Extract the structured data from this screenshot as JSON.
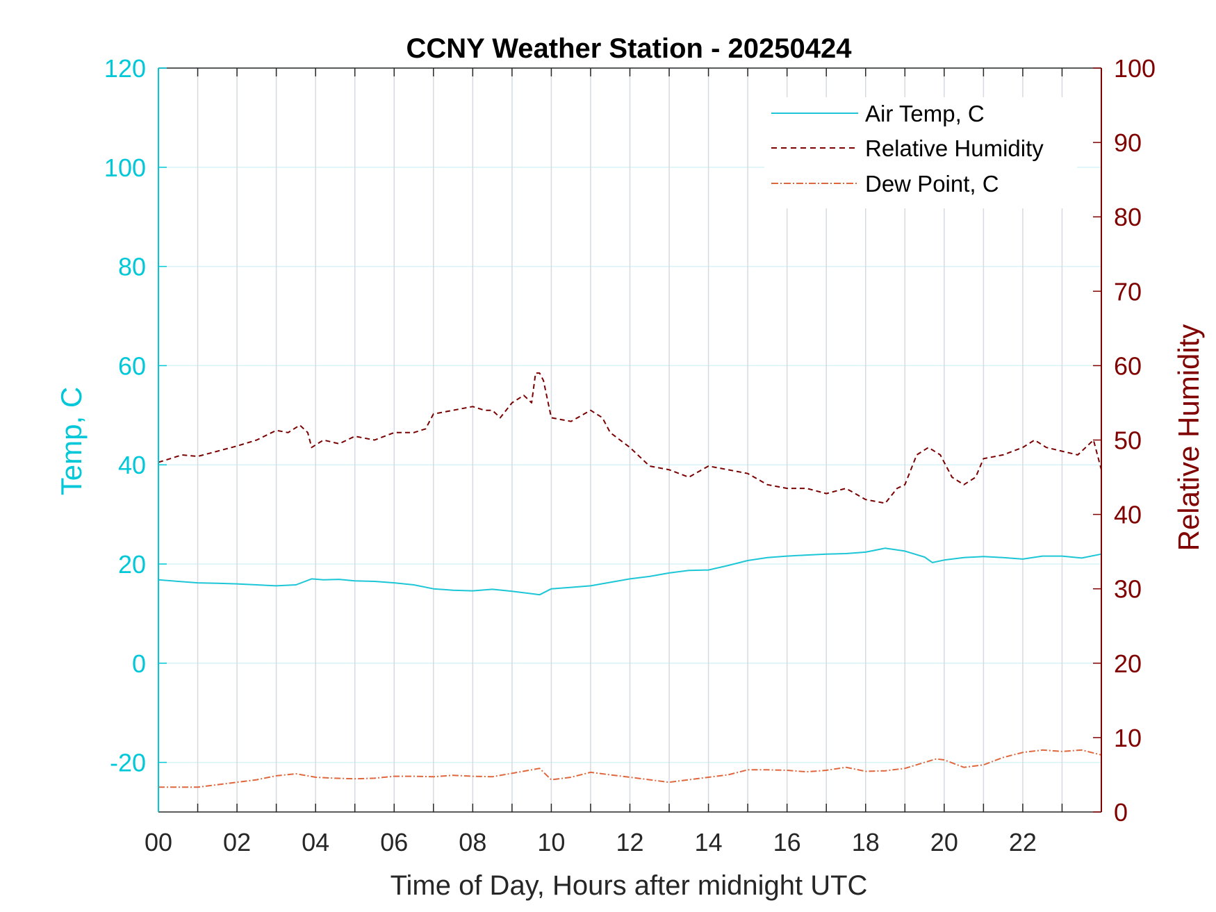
{
  "chart_data": {
    "type": "line",
    "title": "CCNY Weather Station - 20250424",
    "xlabel": "Time of Day, Hours after midnight UTC",
    "ylabel_left": "Temp, C",
    "ylabel_right": "Relative Humidity",
    "xlim": [
      0,
      24
    ],
    "ylim_left": [
      -30,
      120
    ],
    "ylim_right": [
      0,
      100
    ],
    "x_ticks": [
      0,
      2,
      4,
      6,
      8,
      10,
      12,
      14,
      16,
      18,
      20,
      22
    ],
    "x_tick_labels": [
      "00",
      "02",
      "04",
      "06",
      "08",
      "10",
      "12",
      "14",
      "16",
      "18",
      "20",
      "22"
    ],
    "y_left_ticks": [
      -20,
      0,
      20,
      40,
      60,
      80,
      100,
      120
    ],
    "y_left_tick_labels": [
      "-20",
      "0",
      "20",
      "40",
      "60",
      "80",
      "100",
      "120"
    ],
    "y_right_ticks": [
      0,
      10,
      20,
      30,
      40,
      50,
      60,
      70,
      80,
      90,
      100
    ],
    "y_right_tick_labels": [
      "0",
      "10",
      "20",
      "30",
      "40",
      "50",
      "60",
      "70",
      "80",
      "90",
      "100"
    ],
    "grid": true,
    "legend_position": "top-right",
    "colors": {
      "left_axis": "#00c8d8",
      "right_axis": "#800000",
      "air_temp": "#1cc6d6",
      "humidity": "#7a0000",
      "dew_point": "#e0663c",
      "grid_vertical": "#d5dbe0",
      "grid_horizontal": "#d8f3f7"
    },
    "series": [
      {
        "name": "Air Temp, C",
        "axis": "left",
        "style": "solid",
        "x": [
          0,
          0.5,
          1,
          1.5,
          2,
          2.5,
          3,
          3.5,
          3.9,
          4.2,
          4.6,
          5,
          5.5,
          6,
          6.5,
          7,
          7.5,
          8,
          8.5,
          9,
          9.5,
          9.7,
          10,
          10.5,
          11,
          11.5,
          12,
          12.5,
          13,
          13.5,
          14,
          14.5,
          15,
          15.5,
          16,
          16.5,
          17,
          17.5,
          18,
          18.5,
          19,
          19.5,
          19.7,
          20,
          20.5,
          21,
          21.5,
          22,
          22.5,
          23,
          23.5,
          24
        ],
        "y": [
          16.8,
          16.5,
          16.2,
          16.1,
          16.0,
          15.8,
          15.6,
          15.8,
          17.0,
          16.8,
          16.9,
          16.6,
          16.5,
          16.2,
          15.8,
          15.0,
          14.7,
          14.6,
          14.9,
          14.5,
          14.0,
          13.8,
          15.0,
          15.3,
          15.6,
          16.3,
          17.0,
          17.5,
          18.2,
          18.7,
          18.8,
          19.7,
          20.7,
          21.3,
          21.6,
          21.8,
          22.0,
          22.1,
          22.4,
          23.2,
          22.6,
          21.4,
          20.3,
          20.8,
          21.3,
          21.5,
          21.3,
          21.0,
          21.6,
          21.6,
          21.2,
          22.0
        ]
      },
      {
        "name": "Relative Humidity",
        "axis": "right",
        "style": "dashed",
        "x": [
          0,
          0.3,
          0.6,
          1,
          1.5,
          2,
          2.5,
          3,
          3.3,
          3.6,
          3.8,
          3.9,
          4.2,
          4.6,
          5,
          5.5,
          6,
          6.5,
          6.8,
          7,
          7.5,
          8,
          8.3,
          8.5,
          8.7,
          9,
          9.3,
          9.5,
          9.6,
          9.7,
          9.8,
          10,
          10.5,
          11,
          11.3,
          11.5,
          12,
          12.5,
          13,
          13.5,
          14,
          14.5,
          15,
          15.5,
          16,
          16.5,
          17,
          17.5,
          18,
          18.5,
          18.8,
          19,
          19.3,
          19.6,
          19.9,
          20.2,
          20.5,
          20.8,
          21,
          21.5,
          22,
          22.3,
          22.6,
          23,
          23.4,
          23.8,
          24
        ],
        "y": [
          47,
          47.5,
          48,
          47.8,
          48.5,
          49.2,
          50,
          51.3,
          51,
          52,
          51,
          49,
          50,
          49.5,
          50.5,
          50,
          51,
          51,
          51.5,
          53.5,
          54,
          54.5,
          54,
          54,
          53,
          55,
          56,
          55,
          59,
          59,
          58,
          53,
          52.5,
          54,
          53,
          51,
          49,
          46.5,
          46,
          45,
          46.5,
          46,
          45.5,
          44,
          43.5,
          43.5,
          42.8,
          43.5,
          42,
          41.5,
          43.5,
          44,
          48,
          49,
          48,
          45,
          44,
          45,
          47.5,
          48,
          49,
          50,
          49,
          48.5,
          48,
          50,
          46
        ]
      },
      {
        "name": "Dew Point, C",
        "axis": "left",
        "style": "dashdot",
        "x": [
          0,
          0.5,
          1,
          1.5,
          2,
          2.5,
          3,
          3.5,
          4,
          4.5,
          5,
          5.5,
          6,
          6.5,
          7,
          7.5,
          8,
          8.5,
          9,
          9.5,
          9.7,
          10,
          10.5,
          11,
          11.5,
          12,
          12.5,
          13,
          13.5,
          14,
          14.5,
          15,
          15.5,
          16,
          16.5,
          17,
          17.5,
          18,
          18.5,
          19,
          19.5,
          19.8,
          20,
          20.5,
          21,
          21.5,
          22,
          22.5,
          23,
          23.5,
          24
        ],
        "y": [
          -25,
          -25,
          -25,
          -24.5,
          -24,
          -23.5,
          -22.7,
          -22.3,
          -23,
          -23.2,
          -23.3,
          -23.2,
          -22.8,
          -22.8,
          -22.9,
          -22.6,
          -22.8,
          -22.9,
          -22.2,
          -21.5,
          -21.2,
          -23.5,
          -23,
          -22,
          -22.5,
          -23,
          -23.5,
          -24,
          -23.5,
          -23,
          -22.5,
          -21.5,
          -21.5,
          -21.6,
          -21.9,
          -21.6,
          -21,
          -21.8,
          -21.7,
          -21.2,
          -20,
          -19.3,
          -19.5,
          -21,
          -20.5,
          -19,
          -18,
          -17.5,
          -17.8,
          -17.5,
          -18.5
        ]
      }
    ]
  }
}
